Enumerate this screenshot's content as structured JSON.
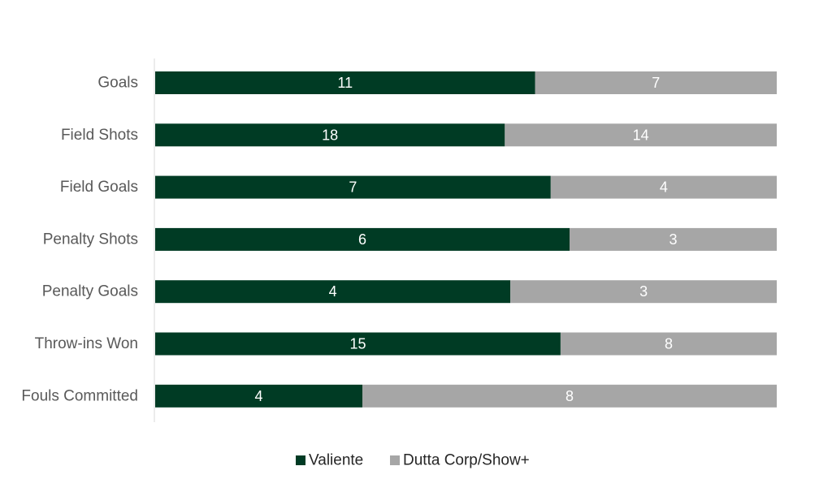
{
  "chart_data": {
    "type": "bar",
    "orientation": "horizontal",
    "stacking": "percent",
    "categories": [
      "Goals",
      "Field Shots",
      "Field Goals",
      "Penalty Shots",
      "Penalty Goals",
      "Throw-ins Won",
      "Fouls Committed"
    ],
    "series": [
      {
        "name": "Valiente",
        "values": [
          11,
          18,
          7,
          6,
          4,
          15,
          4
        ],
        "color": "#003b24"
      },
      {
        "name": "Dutta Corp/Show+",
        "values": [
          7,
          14,
          4,
          3,
          3,
          8,
          8
        ],
        "color": "#a6a6a6"
      }
    ],
    "data_labels": true,
    "grid": false,
    "legend_position": "bottom",
    "xlim": [
      0,
      100
    ]
  }
}
